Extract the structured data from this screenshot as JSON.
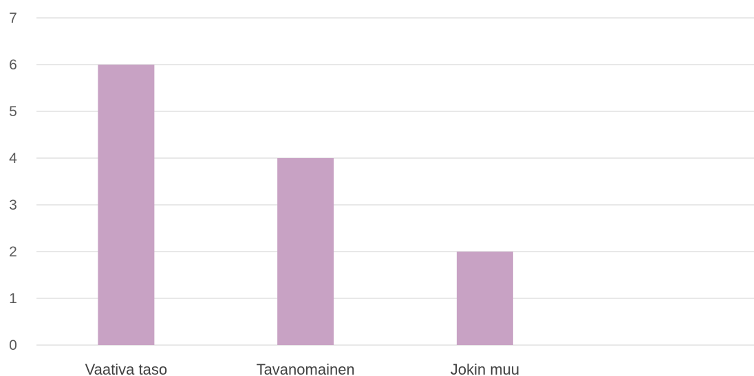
{
  "chart_data": {
    "type": "bar",
    "categories": [
      "Vaativa taso",
      "Tavanomainen",
      "Jokin muu",
      ""
    ],
    "values": [
      6,
      4,
      2,
      null
    ],
    "ylim": [
      0,
      7
    ],
    "yticks": [
      "0",
      "1",
      "2",
      "3",
      "4",
      "5",
      "6",
      "7"
    ],
    "grid": true,
    "legend": "none",
    "bar_color": "#c8a2c4",
    "grid_color": "#d9d9d9",
    "tick_color": "#595959",
    "label_color": "#404040"
  }
}
